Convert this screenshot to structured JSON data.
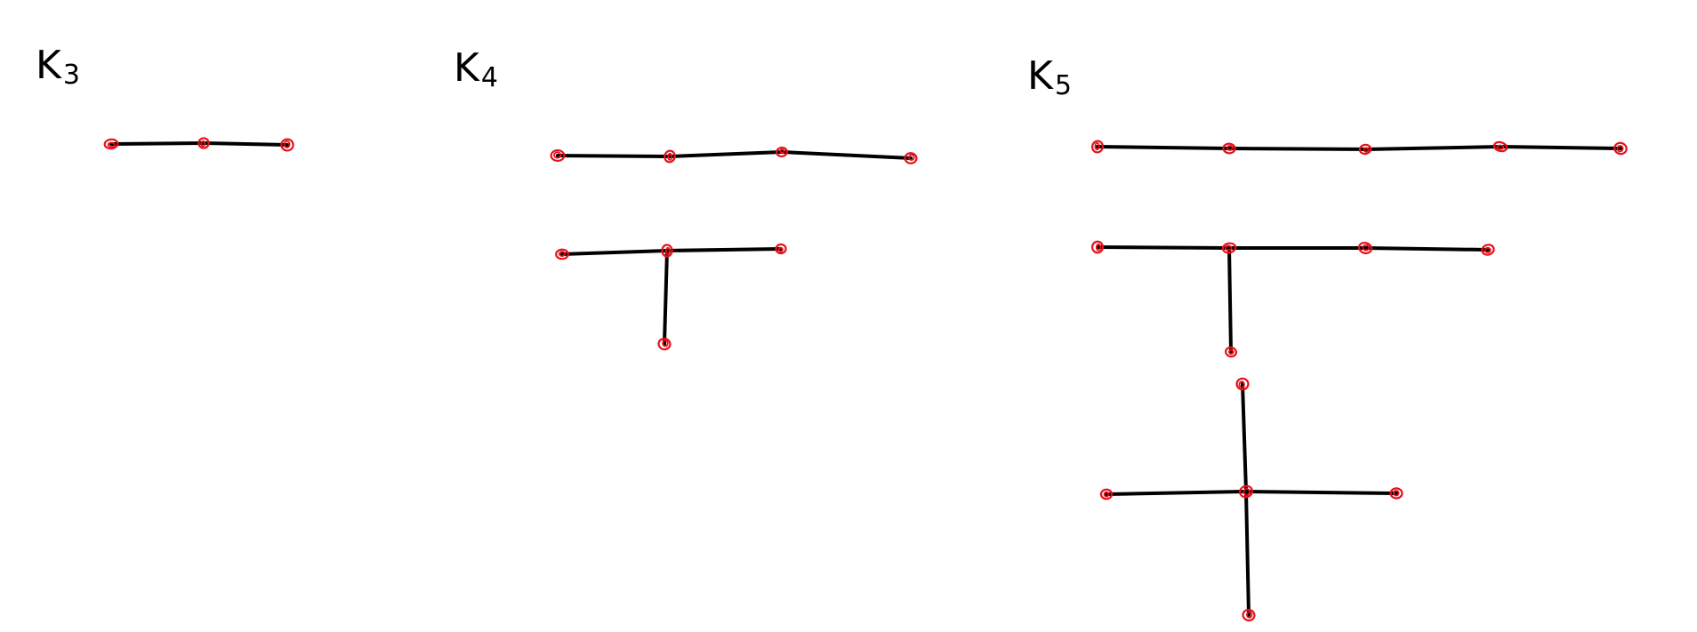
{
  "panels": [
    {
      "id": "k3",
      "label": {
        "main": "K",
        "sub": "3"
      },
      "trees": [
        {
          "nodes": [
            "a",
            "b",
            "c"
          ],
          "edges": [
            [
              "a",
              "b"
            ],
            [
              "b",
              "c"
            ]
          ]
        }
      ]
    },
    {
      "id": "k4",
      "label": {
        "main": "K",
        "sub": "4"
      },
      "trees": [
        {
          "nodes": [
            "a",
            "b",
            "c",
            "d"
          ],
          "edges": [
            [
              "a",
              "b"
            ],
            [
              "b",
              "c"
            ],
            [
              "c",
              "d"
            ]
          ]
        },
        {
          "nodes": [
            "a",
            "b",
            "c",
            "d"
          ],
          "edges": [
            [
              "a",
              "b"
            ],
            [
              "b",
              "c"
            ],
            [
              "b",
              "d"
            ]
          ]
        }
      ]
    },
    {
      "id": "k5",
      "label": {
        "main": "K",
        "sub": "5"
      },
      "trees": [
        {
          "nodes": [
            "a",
            "b",
            "c",
            "d",
            "e"
          ],
          "edges": [
            [
              "a",
              "b"
            ],
            [
              "b",
              "c"
            ],
            [
              "c",
              "d"
            ],
            [
              "d",
              "e"
            ]
          ]
        },
        {
          "nodes": [
            "a",
            "b",
            "c",
            "d",
            "e"
          ],
          "edges": [
            [
              "a",
              "b"
            ],
            [
              "b",
              "c"
            ],
            [
              "c",
              "d"
            ],
            [
              "b",
              "e"
            ]
          ]
        },
        {
          "nodes": [
            "a",
            "b",
            "c",
            "d",
            "e"
          ],
          "edges": [
            [
              "a",
              "c"
            ],
            [
              "b",
              "c"
            ],
            [
              "c",
              "d"
            ],
            [
              "c",
              "e"
            ]
          ]
        }
      ]
    }
  ],
  "colors": {
    "edge": "#000000",
    "vertex": "#e8101a",
    "background": "#ffffff"
  }
}
